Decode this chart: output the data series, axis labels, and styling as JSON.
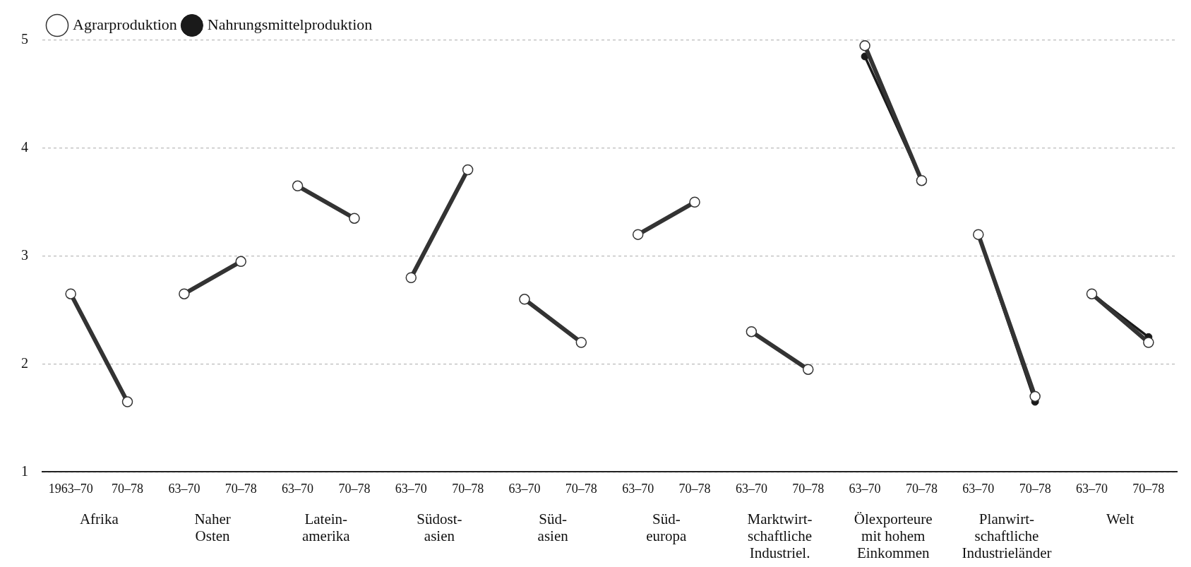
{
  "chart_data": {
    "type": "line",
    "categories": [
      "1963–70",
      "70–78",
      "63–70",
      "70–78",
      "63–70",
      "70–78",
      "63–70",
      "70–78",
      "63–70",
      "70–78",
      "63–70",
      "70–78",
      "63–70",
      "70–78",
      "63–70",
      "70–78",
      "63–70",
      "70–78",
      "63–70",
      "70–78"
    ],
    "series": [
      {
        "name": "Agrarproduktion",
        "color": "#333333",
        "values": [
          2.65,
          1.65,
          2.65,
          2.95,
          3.65,
          3.35,
          2.8,
          3.8,
          2.6,
          2.2,
          3.2,
          3.5,
          2.3,
          1.95,
          4.95,
          3.7,
          3.2,
          1.7,
          2.65,
          2.2
        ]
      },
      {
        "name": "Nahrungsmittelproduktion",
        "color": "#1a1a1a",
        "values": [
          2.65,
          1.65,
          2.65,
          2.95,
          3.65,
          3.35,
          2.8,
          3.8,
          2.6,
          2.2,
          3.2,
          3.5,
          2.3,
          1.95,
          4.85,
          3.7,
          3.2,
          1.65,
          2.65,
          2.25
        ]
      }
    ],
    "annotations": [
      "Afrika",
      "Naher\nOsten",
      "Latein-\namerika",
      "Südost-\nasien",
      "Süd-\nasien",
      "Süd-\neuropa",
      "Marktwirt-\nschaftliche\nIndustriel.",
      "Ölexporteure\nmit hohem\nEinkommen",
      "Planwirt-\nschaftliche\nIndustrieländer",
      "Welt"
    ],
    "ylim": [
      1,
      5
    ],
    "yticks": [
      1,
      2,
      3,
      4,
      5
    ],
    "grid": "y",
    "legend": "top left",
    "marker": "circle",
    "line_style": "solid"
  }
}
